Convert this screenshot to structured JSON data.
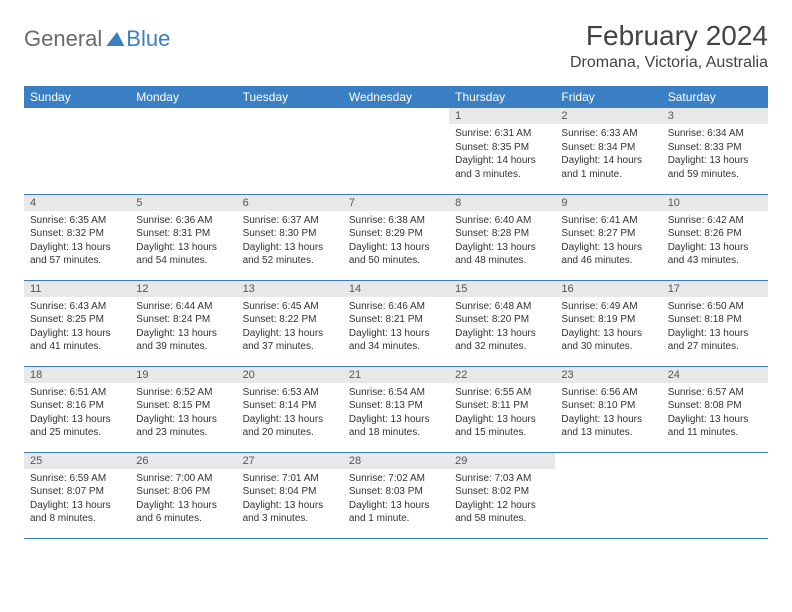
{
  "logo": {
    "text1": "General",
    "text2": "Blue"
  },
  "title": "February 2024",
  "location": "Dromana, Victoria, Australia",
  "dayHeaders": [
    "Sunday",
    "Monday",
    "Tuesday",
    "Wednesday",
    "Thursday",
    "Friday",
    "Saturday"
  ],
  "colors": {
    "header_bg": "#3a7fc4",
    "header_text": "#ffffff",
    "daynum_bg": "#e8e8e8",
    "row_border": "#3a7fc4",
    "logo_gray": "#6a6a6a",
    "logo_blue": "#3a7fc4",
    "body_text": "#333333"
  },
  "fonts": {
    "title_size": 28,
    "location_size": 16,
    "header_size": 12,
    "daynum_size": 11,
    "content_size": 10
  },
  "weeks": [
    [
      {
        "n": "",
        "empty": true
      },
      {
        "n": "",
        "empty": true
      },
      {
        "n": "",
        "empty": true
      },
      {
        "n": "",
        "empty": true
      },
      {
        "n": "1",
        "sr": "Sunrise: 6:31 AM",
        "ss": "Sunset: 8:35 PM",
        "d1": "Daylight: 14 hours",
        "d2": "and 3 minutes."
      },
      {
        "n": "2",
        "sr": "Sunrise: 6:33 AM",
        "ss": "Sunset: 8:34 PM",
        "d1": "Daylight: 14 hours",
        "d2": "and 1 minute."
      },
      {
        "n": "3",
        "sr": "Sunrise: 6:34 AM",
        "ss": "Sunset: 8:33 PM",
        "d1": "Daylight: 13 hours",
        "d2": "and 59 minutes."
      }
    ],
    [
      {
        "n": "4",
        "sr": "Sunrise: 6:35 AM",
        "ss": "Sunset: 8:32 PM",
        "d1": "Daylight: 13 hours",
        "d2": "and 57 minutes."
      },
      {
        "n": "5",
        "sr": "Sunrise: 6:36 AM",
        "ss": "Sunset: 8:31 PM",
        "d1": "Daylight: 13 hours",
        "d2": "and 54 minutes."
      },
      {
        "n": "6",
        "sr": "Sunrise: 6:37 AM",
        "ss": "Sunset: 8:30 PM",
        "d1": "Daylight: 13 hours",
        "d2": "and 52 minutes."
      },
      {
        "n": "7",
        "sr": "Sunrise: 6:38 AM",
        "ss": "Sunset: 8:29 PM",
        "d1": "Daylight: 13 hours",
        "d2": "and 50 minutes."
      },
      {
        "n": "8",
        "sr": "Sunrise: 6:40 AM",
        "ss": "Sunset: 8:28 PM",
        "d1": "Daylight: 13 hours",
        "d2": "and 48 minutes."
      },
      {
        "n": "9",
        "sr": "Sunrise: 6:41 AM",
        "ss": "Sunset: 8:27 PM",
        "d1": "Daylight: 13 hours",
        "d2": "and 46 minutes."
      },
      {
        "n": "10",
        "sr": "Sunrise: 6:42 AM",
        "ss": "Sunset: 8:26 PM",
        "d1": "Daylight: 13 hours",
        "d2": "and 43 minutes."
      }
    ],
    [
      {
        "n": "11",
        "sr": "Sunrise: 6:43 AM",
        "ss": "Sunset: 8:25 PM",
        "d1": "Daylight: 13 hours",
        "d2": "and 41 minutes."
      },
      {
        "n": "12",
        "sr": "Sunrise: 6:44 AM",
        "ss": "Sunset: 8:24 PM",
        "d1": "Daylight: 13 hours",
        "d2": "and 39 minutes."
      },
      {
        "n": "13",
        "sr": "Sunrise: 6:45 AM",
        "ss": "Sunset: 8:22 PM",
        "d1": "Daylight: 13 hours",
        "d2": "and 37 minutes."
      },
      {
        "n": "14",
        "sr": "Sunrise: 6:46 AM",
        "ss": "Sunset: 8:21 PM",
        "d1": "Daylight: 13 hours",
        "d2": "and 34 minutes."
      },
      {
        "n": "15",
        "sr": "Sunrise: 6:48 AM",
        "ss": "Sunset: 8:20 PM",
        "d1": "Daylight: 13 hours",
        "d2": "and 32 minutes."
      },
      {
        "n": "16",
        "sr": "Sunrise: 6:49 AM",
        "ss": "Sunset: 8:19 PM",
        "d1": "Daylight: 13 hours",
        "d2": "and 30 minutes."
      },
      {
        "n": "17",
        "sr": "Sunrise: 6:50 AM",
        "ss": "Sunset: 8:18 PM",
        "d1": "Daylight: 13 hours",
        "d2": "and 27 minutes."
      }
    ],
    [
      {
        "n": "18",
        "sr": "Sunrise: 6:51 AM",
        "ss": "Sunset: 8:16 PM",
        "d1": "Daylight: 13 hours",
        "d2": "and 25 minutes."
      },
      {
        "n": "19",
        "sr": "Sunrise: 6:52 AM",
        "ss": "Sunset: 8:15 PM",
        "d1": "Daylight: 13 hours",
        "d2": "and 23 minutes."
      },
      {
        "n": "20",
        "sr": "Sunrise: 6:53 AM",
        "ss": "Sunset: 8:14 PM",
        "d1": "Daylight: 13 hours",
        "d2": "and 20 minutes."
      },
      {
        "n": "21",
        "sr": "Sunrise: 6:54 AM",
        "ss": "Sunset: 8:13 PM",
        "d1": "Daylight: 13 hours",
        "d2": "and 18 minutes."
      },
      {
        "n": "22",
        "sr": "Sunrise: 6:55 AM",
        "ss": "Sunset: 8:11 PM",
        "d1": "Daylight: 13 hours",
        "d2": "and 15 minutes."
      },
      {
        "n": "23",
        "sr": "Sunrise: 6:56 AM",
        "ss": "Sunset: 8:10 PM",
        "d1": "Daylight: 13 hours",
        "d2": "and 13 minutes."
      },
      {
        "n": "24",
        "sr": "Sunrise: 6:57 AM",
        "ss": "Sunset: 8:08 PM",
        "d1": "Daylight: 13 hours",
        "d2": "and 11 minutes."
      }
    ],
    [
      {
        "n": "25",
        "sr": "Sunrise: 6:59 AM",
        "ss": "Sunset: 8:07 PM",
        "d1": "Daylight: 13 hours",
        "d2": "and 8 minutes."
      },
      {
        "n": "26",
        "sr": "Sunrise: 7:00 AM",
        "ss": "Sunset: 8:06 PM",
        "d1": "Daylight: 13 hours",
        "d2": "and 6 minutes."
      },
      {
        "n": "27",
        "sr": "Sunrise: 7:01 AM",
        "ss": "Sunset: 8:04 PM",
        "d1": "Daylight: 13 hours",
        "d2": "and 3 minutes."
      },
      {
        "n": "28",
        "sr": "Sunrise: 7:02 AM",
        "ss": "Sunset: 8:03 PM",
        "d1": "Daylight: 13 hours",
        "d2": "and 1 minute."
      },
      {
        "n": "29",
        "sr": "Sunrise: 7:03 AM",
        "ss": "Sunset: 8:02 PM",
        "d1": "Daylight: 12 hours",
        "d2": "and 58 minutes."
      },
      {
        "n": "",
        "empty": true
      },
      {
        "n": "",
        "empty": true
      }
    ]
  ]
}
